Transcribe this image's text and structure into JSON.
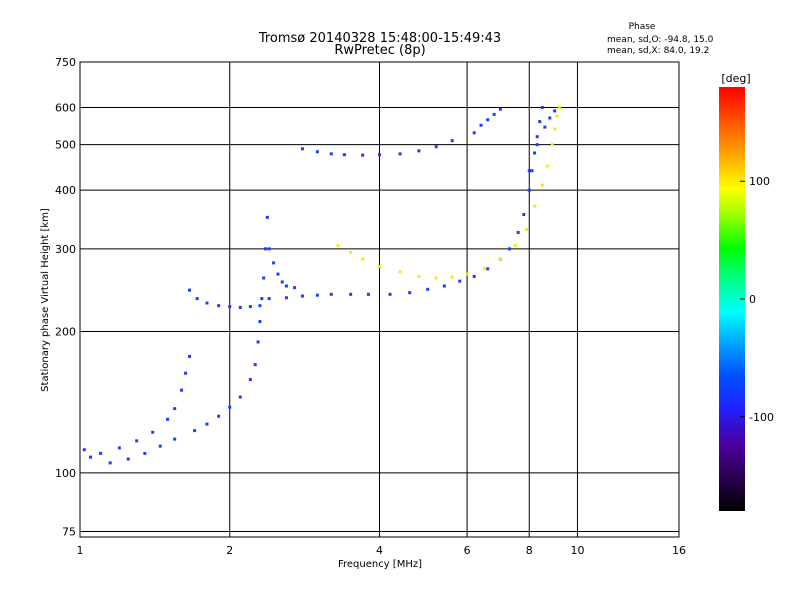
{
  "chart_data": {
    "type": "scatter",
    "title": "Tromsø 20140328 15:48:00-15:49:43",
    "subtitle": "RwPretec (8p)",
    "xlabel": "Frequency [MHz]",
    "ylabel": "Stationary phase Virtual Height [km]",
    "x_scale": "log",
    "y_scale": "log",
    "xlim": [
      1,
      16
    ],
    "ylim": [
      73,
      750
    ],
    "x_ticks": [
      1,
      2,
      4,
      6,
      8,
      10,
      16
    ],
    "x_tick_labels": [
      "1",
      "2",
      "4",
      "6",
      "8",
      "10",
      "16"
    ],
    "y_ticks": [
      75,
      100,
      200,
      300,
      400,
      500,
      600,
      750
    ],
    "y_tick_labels": [
      "75",
      "100",
      "200",
      "300",
      "400",
      "500",
      "600",
      "750"
    ],
    "grid": true,
    "phase_stats": {
      "heading": "Phase",
      "line_o": "mean, sd,O: -94.8, 15.0",
      "line_x": "mean, sd,X:  84.0, 19.2"
    },
    "colorbar": {
      "label": "[deg]",
      "range": [
        -180,
        180
      ],
      "ticks": [
        100,
        0,
        -100
      ],
      "tick_labels": [
        "100",
        "0",
        "-100"
      ]
    },
    "series": [
      {
        "mode": "O",
        "phase_deg": -110,
        "points": [
          [
            1.02,
            112
          ],
          [
            1.1,
            110
          ],
          [
            1.2,
            113
          ],
          [
            1.3,
            117
          ],
          [
            1.4,
            122
          ],
          [
            1.5,
            130
          ],
          [
            1.55,
            137
          ],
          [
            1.6,
            150
          ],
          [
            1.63,
            163
          ],
          [
            1.66,
            177
          ],
          [
            1.05,
            108
          ],
          [
            1.15,
            105
          ],
          [
            1.25,
            107
          ],
          [
            1.35,
            110
          ],
          [
            1.45,
            114
          ],
          [
            1.55,
            118
          ],
          [
            1.7,
            123
          ],
          [
            1.8,
            127
          ],
          [
            1.9,
            132
          ],
          [
            2.0,
            138
          ],
          [
            2.1,
            145
          ],
          [
            2.2,
            158
          ],
          [
            2.25,
            170
          ],
          [
            2.28,
            190
          ],
          [
            2.3,
            210
          ],
          [
            2.32,
            235
          ],
          [
            2.34,
            260
          ],
          [
            2.36,
            300
          ],
          [
            2.38,
            350
          ],
          [
            1.66,
            245
          ],
          [
            1.72,
            235
          ],
          [
            1.8,
            230
          ],
          [
            1.9,
            227
          ],
          [
            2.0,
            226
          ],
          [
            2.1,
            225
          ],
          [
            2.2,
            226
          ],
          [
            2.3,
            227
          ],
          [
            2.4,
            235
          ],
          [
            2.6,
            236
          ],
          [
            2.8,
            238
          ],
          [
            3.0,
            239
          ],
          [
            3.2,
            240
          ],
          [
            3.5,
            240
          ],
          [
            3.8,
            240
          ],
          [
            4.2,
            240
          ],
          [
            4.6,
            242
          ],
          [
            5.0,
            246
          ],
          [
            5.4,
            250
          ],
          [
            5.8,
            256
          ],
          [
            6.2,
            262
          ],
          [
            6.6,
            272
          ],
          [
            7.0,
            285
          ],
          [
            7.3,
            300
          ],
          [
            7.6,
            325
          ],
          [
            7.8,
            355
          ],
          [
            8.0,
            400
          ],
          [
            8.1,
            440
          ],
          [
            8.2,
            480
          ],
          [
            8.3,
            520
          ],
          [
            8.4,
            560
          ],
          [
            8.5,
            600
          ],
          [
            2.4,
            300
          ],
          [
            2.45,
            280
          ],
          [
            2.5,
            265
          ],
          [
            2.55,
            255
          ],
          [
            2.6,
            250
          ],
          [
            2.7,
            248
          ],
          [
            2.8,
            490
          ],
          [
            3.0,
            483
          ],
          [
            3.2,
            478
          ],
          [
            3.4,
            476
          ],
          [
            3.7,
            475
          ],
          [
            4.0,
            476
          ],
          [
            4.4,
            478
          ],
          [
            4.8,
            485
          ],
          [
            5.2,
            495
          ],
          [
            5.6,
            510
          ],
          [
            6.2,
            530
          ],
          [
            6.4,
            550
          ],
          [
            6.6,
            565
          ],
          [
            6.8,
            580
          ],
          [
            7.0,
            595
          ],
          [
            8.0,
            440
          ],
          [
            8.3,
            500
          ],
          [
            8.6,
            545
          ],
          [
            8.8,
            570
          ],
          [
            9.0,
            590
          ]
        ]
      },
      {
        "mode": "X",
        "phase_deg": 80,
        "points": [
          [
            3.3,
            305
          ],
          [
            3.5,
            295
          ],
          [
            3.7,
            285
          ],
          [
            4.0,
            275
          ],
          [
            4.4,
            268
          ],
          [
            4.8,
            262
          ],
          [
            5.2,
            260
          ],
          [
            5.6,
            261
          ],
          [
            6.0,
            265
          ],
          [
            6.5,
            272
          ],
          [
            7.0,
            285
          ],
          [
            7.5,
            305
          ],
          [
            7.9,
            330
          ],
          [
            8.2,
            370
          ],
          [
            8.5,
            410
          ],
          [
            8.7,
            450
          ],
          [
            8.9,
            500
          ],
          [
            9.0,
            540
          ],
          [
            9.1,
            575
          ],
          [
            9.2,
            600
          ]
        ]
      }
    ]
  },
  "colors": {
    "axis": "#000000",
    "grid": "#000000",
    "o_mode": "#1e3cff",
    "x_mode": "#f0f000"
  }
}
